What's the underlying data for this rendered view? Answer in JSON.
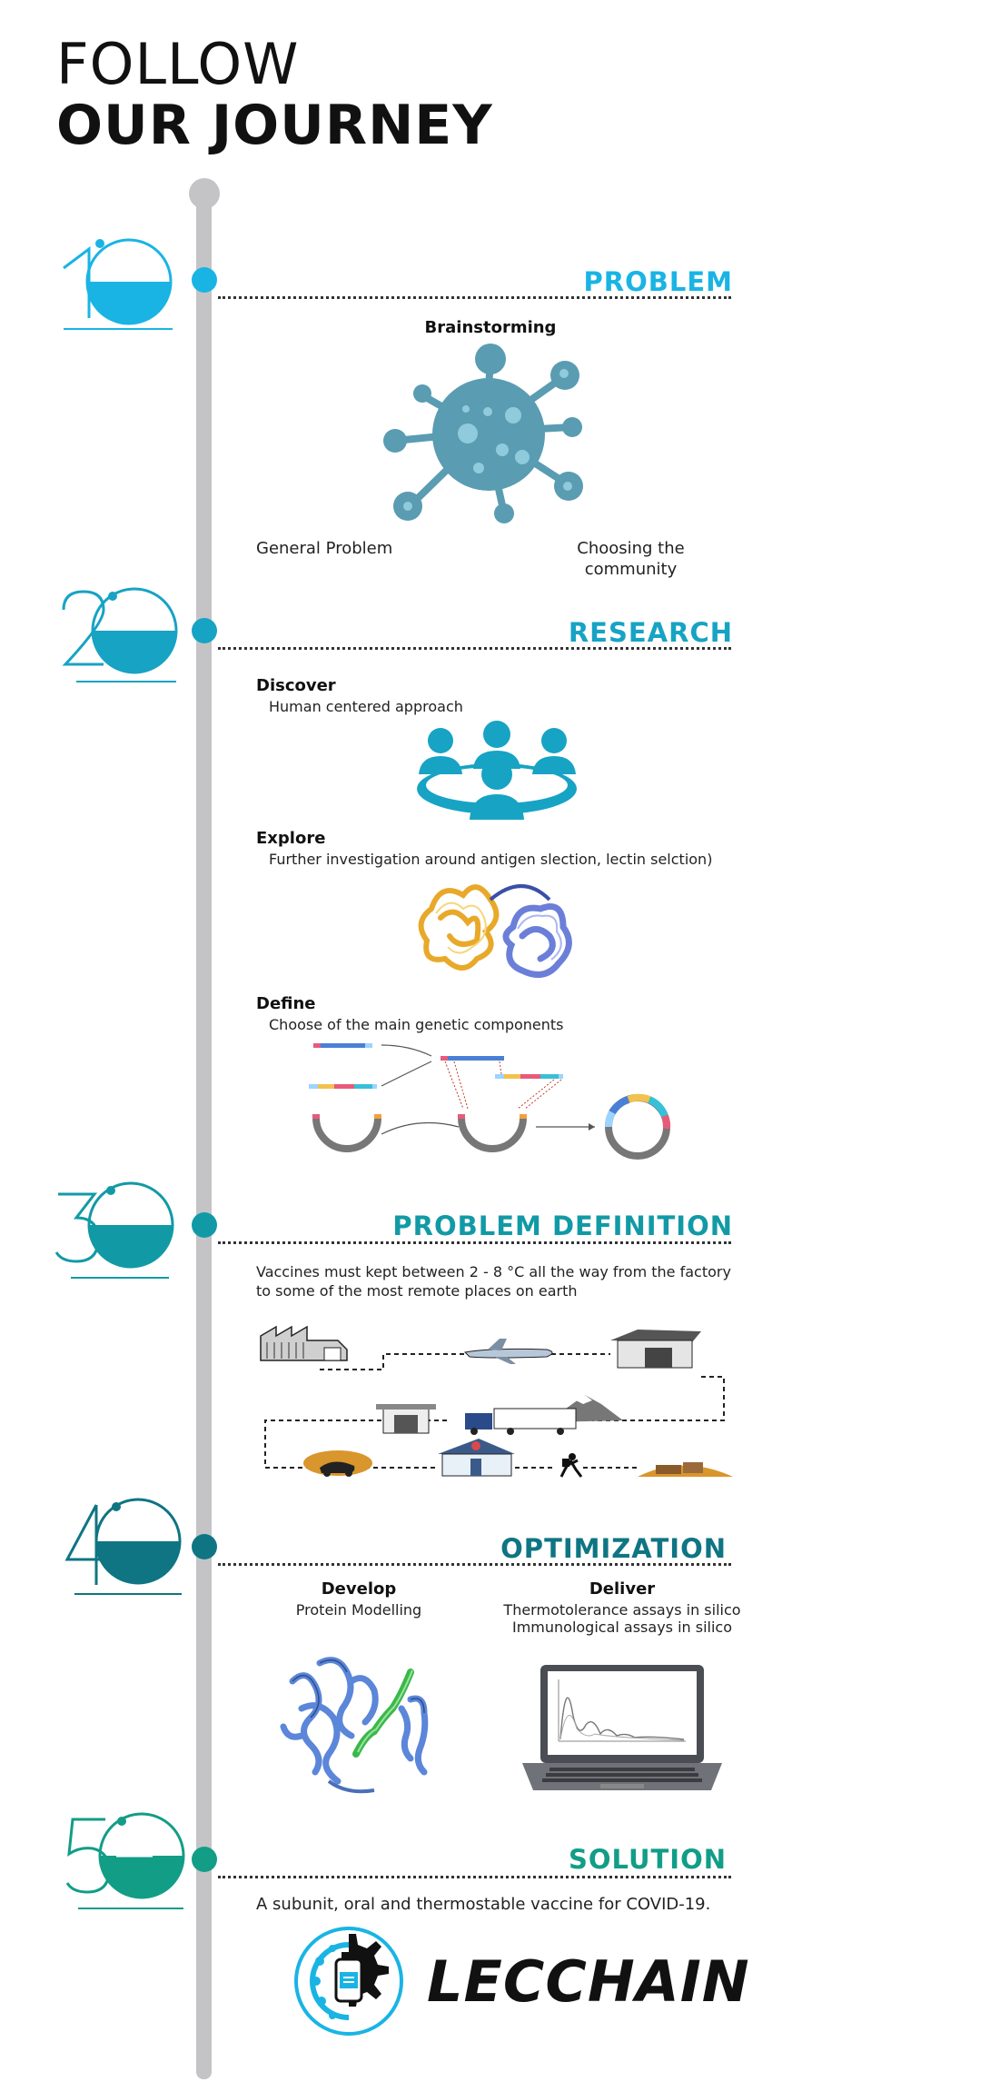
{
  "header": {
    "line1": "FOLLOW",
    "line2": "OUR JOURNEY"
  },
  "colors": {
    "problem": "#19b4e4",
    "research": "#17a3c4",
    "definition": "#119aa6",
    "optimization": "#0f7583",
    "solution": "#129d87",
    "rail": "#c4c4c6"
  },
  "steps": [
    {
      "number": "1",
      "title": "PROBLEM",
      "heading": "Brainstorming",
      "left_label": "General Problem",
      "right_label": "Choosing the community",
      "icon": "virus-icon"
    },
    {
      "number": "2",
      "title": "RESEARCH",
      "items": [
        {
          "heading": "Discover",
          "text": "Human centered approach",
          "icon": "people-group-icon"
        },
        {
          "heading": "Explore",
          "text": "Further investigation around antigen slection, lectin selction)",
          "icon": "protein-structure-icon"
        },
        {
          "heading": "Define",
          "text": "Choose of the main genetic components",
          "icon": "plasmid-assembly-icon"
        }
      ]
    },
    {
      "number": "3",
      "title": "PROBLEM DEFINITION",
      "text": "Vaccines must kept between 2 - 8 °C all the way from the factory to some of the most remote places on earth",
      "icon": "cold-chain-route-icon"
    },
    {
      "number": "4",
      "title": "OPTIMIZATION",
      "left": {
        "heading": "Develop",
        "text": "Protein Modelling",
        "icon": "protein-model-icon"
      },
      "right": {
        "heading": "Deliver",
        "lines": [
          "Thermotolerance assays in silico",
          "Immunological assays in silico"
        ],
        "icon": "laptop-chart-icon"
      }
    },
    {
      "number": "5",
      "title": "SOLUTION",
      "text": "A subunit, oral and thermostable vaccine for COVID-19.",
      "brand": "LECCHAIN",
      "icon": "lecchain-logo-icon"
    }
  ]
}
